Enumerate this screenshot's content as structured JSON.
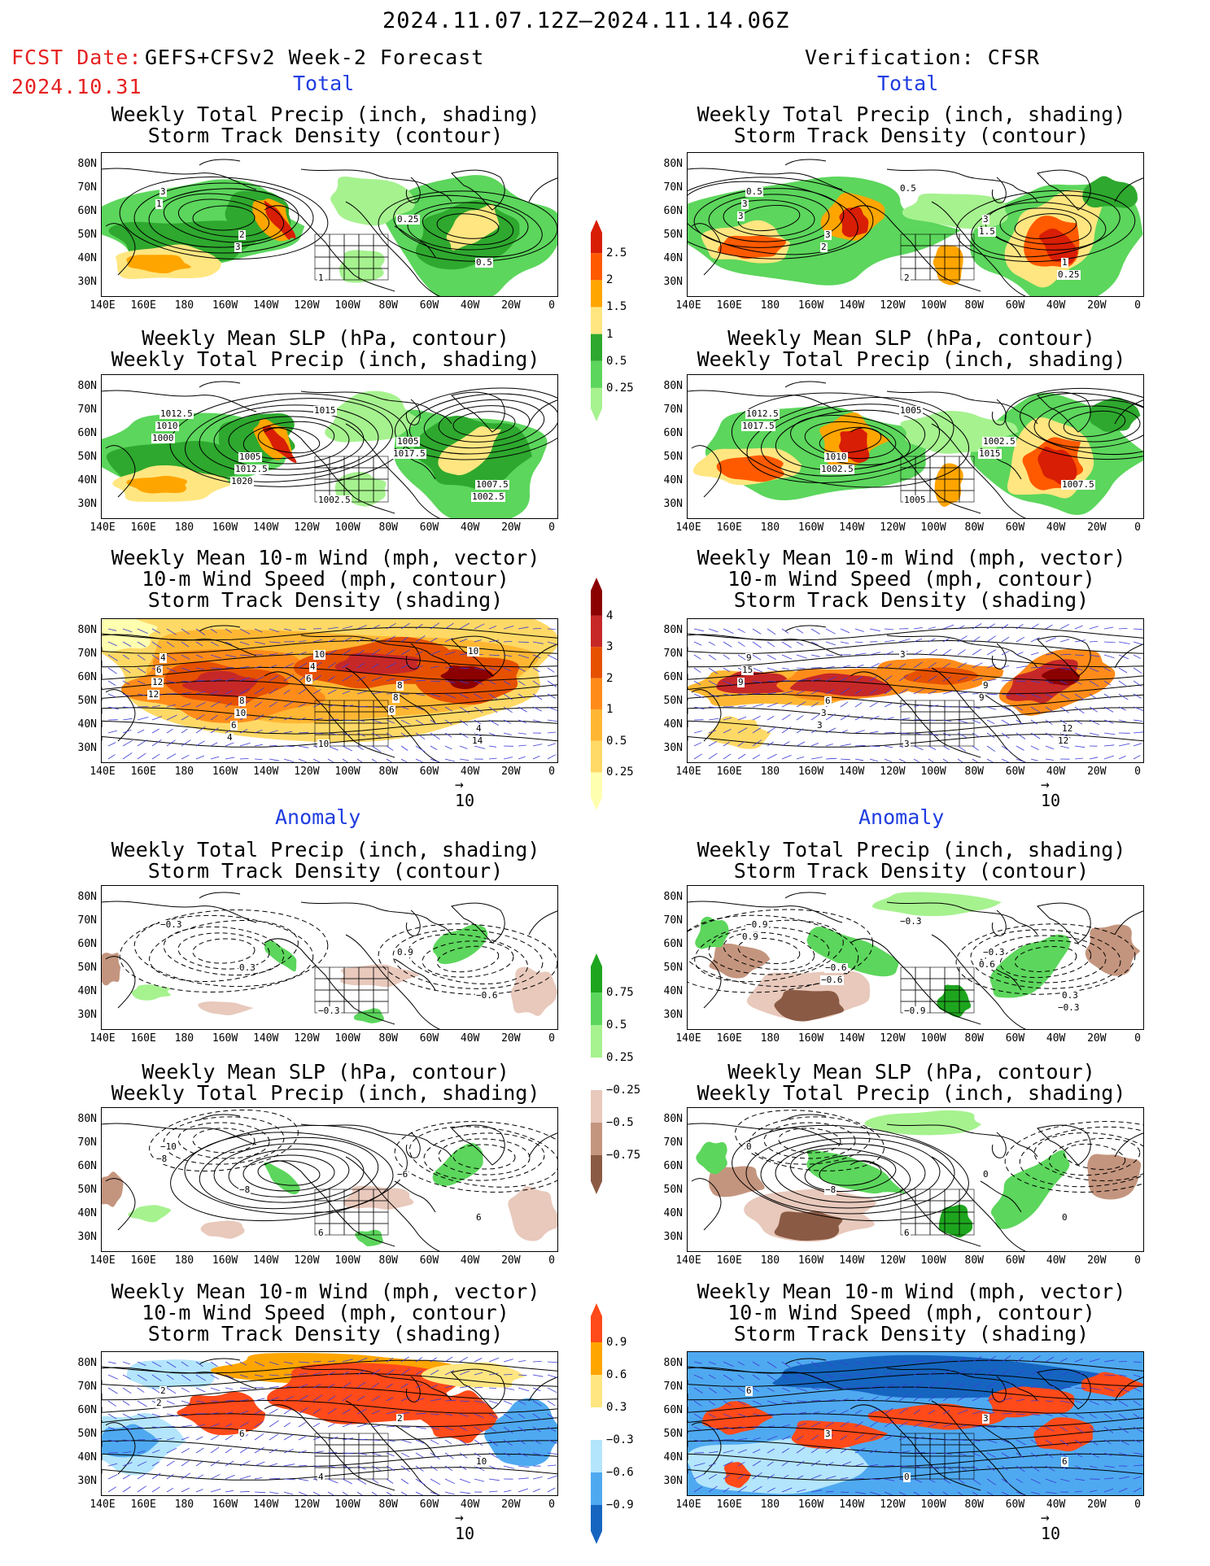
{
  "header": {
    "date_range": "2024.11.07.12Z–2024.11.14.06Z",
    "fcst_label": "FCST Date:",
    "fcst_model": "GEFS+CFSv2 Week-2 Forecast",
    "fcst_date": "2024.10.31",
    "verification": "Verification: CFSR"
  },
  "sections": {
    "total": "Total",
    "anomaly": "Anomaly"
  },
  "titles": {
    "precip_storm": [
      "Weekly Total Precip (inch, shading)",
      "Storm Track Density (contour)"
    ],
    "slp_precip": [
      "Weekly Mean SLP (hPa, contour)",
      "Weekly Total Precip (inch, shading)"
    ],
    "wind": [
      "Weekly Mean 10-m Wind (mph, vector)",
      "10-m Wind Speed (mph, contour)",
      "Storm Track Density (shading)"
    ]
  },
  "axes": {
    "lat_labels": [
      "80N",
      "70N",
      "60N",
      "50N",
      "40N",
      "30N"
    ],
    "lon_labels": [
      "140E",
      "160E",
      "180",
      "160W",
      "140W",
      "120W",
      "100W",
      "80W",
      "60W",
      "40W",
      "20W",
      "0"
    ]
  },
  "vector_ref": "10",
  "colorbars": {
    "precip_total": [
      "2.5",
      "2",
      "1.5",
      "1",
      "0.5",
      "0.25"
    ],
    "storm_total": [
      "4",
      "3",
      "2",
      "1",
      "0.5",
      "0.25"
    ],
    "precip_anom": [
      "0.75",
      "0.5",
      "0.25",
      "−0.25",
      "−0.5",
      "−0.75"
    ],
    "storm_anom": [
      "0.9",
      "0.6",
      "0.3",
      "−0.3",
      "−0.6",
      "−0.9"
    ]
  },
  "colors": {
    "precip": [
      "#a6f28f",
      "#5cd65c",
      "#2ea82e",
      "#ffe680",
      "#ffa500",
      "#ff5a00",
      "#d81e05"
    ],
    "storm": [
      "#ffffb0",
      "#ffd966",
      "#ffb733",
      "#ff8c1a",
      "#e65100",
      "#c62828",
      "#8b0000"
    ],
    "precip_anom_pos": [
      "#a6f28f",
      "#5cd65c",
      "#1ea51e"
    ],
    "precip_anom_neg": [
      "#e8c9bc",
      "#c4957e",
      "#8a5a44"
    ],
    "storm_anom_pos": [
      "#ffe680",
      "#ffa500",
      "#ff4a1a"
    ],
    "storm_anom_neg": [
      "#b3e5fc",
      "#4fa9f0",
      "#1565c0"
    ]
  },
  "contour_labels": {
    "f_ptot_storm": [
      "3",
      "2",
      "1",
      "0.25",
      "0.5",
      "1",
      "3"
    ],
    "f_ptot_slp": [
      "1012.5",
      "1005",
      "1002.5",
      "1005",
      "1007.5",
      "1010",
      "1012.5",
      "1015",
      "1017.5",
      "1002.5",
      "1000",
      "1020"
    ],
    "f_wind": [
      "4",
      "8",
      "10",
      "8",
      "4",
      "6",
      "10",
      "10",
      "8",
      "14",
      "12",
      "6",
      "4",
      "6",
      "10",
      "12",
      "4",
      "6"
    ],
    "v_ptot_storm": [
      "0.5",
      "3",
      "2",
      "3",
      "1",
      "3",
      "2",
      "0.5",
      "1.5",
      "0.25",
      "3"
    ],
    "v_ptot_slp": [
      "1012.5",
      "1010",
      "1005",
      "1002.5",
      "1007.5",
      "1017.5",
      "1002.5",
      "1005",
      "1015"
    ],
    "v_wind": [
      "9",
      "6",
      "3",
      "9",
      "12",
      "15",
      "3",
      "3",
      "9",
      "12",
      "9",
      "3"
    ],
    "f_anom_storm": [
      "−0.3",
      "0.3",
      "−0.3",
      "0.9",
      "−0.6"
    ],
    "f_anom_slp": [
      "−10",
      "−8",
      "6",
      "−6",
      "6",
      "−8"
    ],
    "f_anom_wind": [
      "2",
      "6",
      "4",
      "2",
      "10",
      "2"
    ],
    "v_anom_storm": [
      "−0.9",
      "−0.6",
      "−0.9",
      "−0.3",
      "0.3",
      "0.9",
      "−0.6",
      "−0.3",
      "0.6",
      "−0.3"
    ],
    "v_anom_slp": [
      "0",
      "−8",
      "6",
      "0",
      "0"
    ],
    "v_anom_wind": [
      "6",
      "3",
      "0",
      "3",
      "6"
    ]
  }
}
